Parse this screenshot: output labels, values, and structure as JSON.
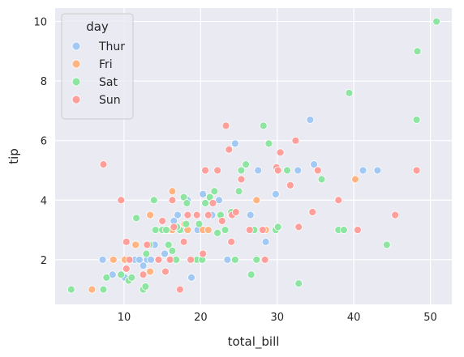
{
  "chart_data": {
    "type": "scatter",
    "xlabel": "total_bill",
    "ylabel": "tip",
    "xlim": [
      1.0,
      52.8
    ],
    "ylim": [
      0.5,
      10.45
    ],
    "xticks": [
      10,
      20,
      30,
      40,
      50
    ],
    "yticks": [
      2,
      4,
      6,
      8,
      10
    ],
    "grid": true,
    "legend": {
      "title": "day",
      "placement": "top-left"
    },
    "series": [
      {
        "name": "Thur",
        "color": "#a1c9f4",
        "points": [
          [
            7.2,
            2.0
          ],
          [
            8.5,
            1.5
          ],
          [
            9.6,
            1.5
          ],
          [
            10.1,
            1.4
          ],
          [
            11.4,
            2.0
          ],
          [
            12.0,
            2.0
          ],
          [
            13.0,
            2.0
          ],
          [
            13.5,
            2.0
          ],
          [
            14.5,
            2.0
          ],
          [
            15.3,
            2.2
          ],
          [
            15.9,
            3.0
          ],
          [
            16.3,
            3.0
          ],
          [
            17.0,
            3.5
          ],
          [
            17.5,
            3.0
          ],
          [
            18.3,
            4.0
          ],
          [
            18.8,
            1.4
          ],
          [
            19.6,
            3.0
          ],
          [
            20.3,
            4.2
          ],
          [
            21.5,
            3.5
          ],
          [
            22.4,
            4.0
          ],
          [
            23.5,
            2.0
          ],
          [
            24.5,
            5.9
          ],
          [
            26.5,
            3.5
          ],
          [
            27.5,
            5.0
          ],
          [
            28.5,
            2.6
          ],
          [
            29.8,
            4.2
          ],
          [
            32.7,
            5.0
          ],
          [
            34.3,
            6.7
          ],
          [
            34.8,
            5.2
          ],
          [
            41.2,
            5.0
          ],
          [
            43.1,
            5.0
          ],
          [
            14.0,
            2.5
          ],
          [
            16.5,
            3.3
          ],
          [
            12.5,
            1.8
          ]
        ]
      },
      {
        "name": "Fri",
        "color": "#ffb482",
        "points": [
          [
            5.8,
            1.0
          ],
          [
            8.6,
            2.0
          ],
          [
            10.1,
            2.0
          ],
          [
            12.5,
            1.5
          ],
          [
            13.4,
            3.5
          ],
          [
            13.4,
            1.6
          ],
          [
            15.4,
            3.0
          ],
          [
            15.7,
            3.0
          ],
          [
            16.3,
            4.3
          ],
          [
            16.3,
            3.0
          ],
          [
            18.3,
            3.0
          ],
          [
            20.3,
            3.0
          ],
          [
            21.0,
            3.0
          ],
          [
            22.8,
            3.3
          ],
          [
            24.0,
            3.5
          ],
          [
            27.3,
            4.0
          ],
          [
            28.5,
            3.0
          ],
          [
            40.2,
            4.7
          ],
          [
            11.5,
            2.5
          ],
          [
            17.9,
            3.2
          ]
        ]
      },
      {
        "name": "Sat",
        "color": "#8de5a1",
        "points": [
          [
            3.1,
            1.0
          ],
          [
            7.3,
            1.0
          ],
          [
            7.7,
            1.4
          ],
          [
            9.6,
            1.5
          ],
          [
            10.3,
            1.7
          ],
          [
            10.6,
            1.3
          ],
          [
            11.0,
            1.4
          ],
          [
            11.6,
            3.4
          ],
          [
            12.5,
            1.0
          ],
          [
            12.8,
            1.1
          ],
          [
            13.3,
            2.5
          ],
          [
            13.9,
            4.0
          ],
          [
            14.1,
            3.0
          ],
          [
            15.0,
            3.0
          ],
          [
            15.5,
            3.0
          ],
          [
            15.8,
            2.5
          ],
          [
            16.3,
            2.3
          ],
          [
            16.8,
            2.0
          ],
          [
            17.3,
            3.0
          ],
          [
            17.8,
            4.1
          ],
          [
            18.1,
            3.2
          ],
          [
            18.2,
            3.9
          ],
          [
            19.5,
            2.0
          ],
          [
            19.8,
            3.2
          ],
          [
            20.2,
            2.0
          ],
          [
            20.6,
            3.9
          ],
          [
            21.2,
            4.1
          ],
          [
            21.8,
            4.3
          ],
          [
            22.2,
            2.9
          ],
          [
            23.2,
            3.0
          ],
          [
            24.0,
            3.6
          ],
          [
            24.5,
            2.0
          ],
          [
            25.0,
            4.3
          ],
          [
            25.3,
            5.0
          ],
          [
            25.9,
            5.2
          ],
          [
            26.6,
            1.5
          ],
          [
            27.0,
            3.0
          ],
          [
            27.3,
            2.0
          ],
          [
            28.2,
            6.5
          ],
          [
            28.9,
            5.9
          ],
          [
            29.8,
            3.0
          ],
          [
            30.1,
            3.1
          ],
          [
            31.3,
            5.0
          ],
          [
            32.8,
            1.2
          ],
          [
            35.8,
            4.7
          ],
          [
            38.0,
            3.0
          ],
          [
            38.7,
            3.0
          ],
          [
            39.4,
            7.6
          ],
          [
            44.3,
            2.5
          ],
          [
            48.2,
            6.7
          ],
          [
            48.3,
            9.0
          ],
          [
            50.8,
            10.0
          ],
          [
            12.9,
            2.2
          ],
          [
            16.9,
            3.1
          ],
          [
            22.6,
            3.5
          ]
        ]
      },
      {
        "name": "Sun",
        "color": "#ff9f9b",
        "points": [
          [
            7.3,
            5.2
          ],
          [
            9.6,
            4.0
          ],
          [
            10.3,
            1.7
          ],
          [
            10.3,
            2.6
          ],
          [
            10.7,
            2.0
          ],
          [
            12.5,
            1.5
          ],
          [
            13.0,
            2.5
          ],
          [
            14.5,
            2.0
          ],
          [
            15.0,
            3.3
          ],
          [
            15.4,
            1.6
          ],
          [
            16.0,
            2.0
          ],
          [
            16.3,
            4.0
          ],
          [
            16.5,
            3.1
          ],
          [
            17.3,
            1.0
          ],
          [
            17.8,
            2.6
          ],
          [
            18.3,
            3.5
          ],
          [
            18.7,
            2.0
          ],
          [
            19.5,
            3.5
          ],
          [
            20.6,
            5.0
          ],
          [
            21.0,
            3.5
          ],
          [
            21.6,
            3.9
          ],
          [
            22.2,
            5.0
          ],
          [
            22.8,
            3.3
          ],
          [
            23.3,
            6.5
          ],
          [
            23.7,
            5.7
          ],
          [
            24.1,
            3.5
          ],
          [
            24.6,
            3.6
          ],
          [
            25.3,
            4.7
          ],
          [
            26.4,
            3.0
          ],
          [
            28.1,
            3.0
          ],
          [
            28.4,
            2.0
          ],
          [
            29.9,
            5.1
          ],
          [
            30.1,
            5.0
          ],
          [
            30.4,
            5.6
          ],
          [
            31.7,
            4.5
          ],
          [
            32.4,
            6.0
          ],
          [
            32.8,
            3.1
          ],
          [
            34.6,
            3.6
          ],
          [
            35.3,
            5.0
          ],
          [
            38.0,
            4.0
          ],
          [
            40.5,
            3.0
          ],
          [
            45.4,
            3.5
          ],
          [
            48.2,
            5.0
          ],
          [
            20.3,
            2.2
          ],
          [
            24.0,
            2.6
          ]
        ]
      }
    ]
  }
}
